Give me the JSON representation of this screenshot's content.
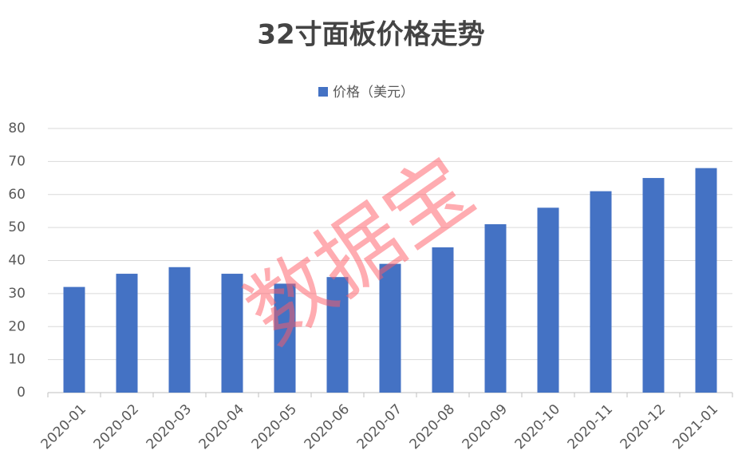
{
  "chart_data": {
    "type": "bar",
    "title": "32寸面板价格走势",
    "categories": [
      "2020-01",
      "2020-02",
      "2020-03",
      "2020-04",
      "2020-05",
      "2020-06",
      "2020-07",
      "2020-08",
      "2020-09",
      "2020-10",
      "2020-11",
      "2020-12",
      "2021-01"
    ],
    "series": [
      {
        "name": "价格（美元）",
        "color": "#4472c4",
        "values": [
          32,
          36,
          38,
          36,
          33,
          35,
          39,
          44,
          51,
          56,
          61,
          65,
          68
        ]
      }
    ],
    "ylim": [
      0,
      80
    ],
    "yticks": [
      0,
      10,
      20,
      30,
      40,
      50,
      60,
      70,
      80
    ],
    "grid": true,
    "legend": "top",
    "watermark": "数据宝"
  }
}
